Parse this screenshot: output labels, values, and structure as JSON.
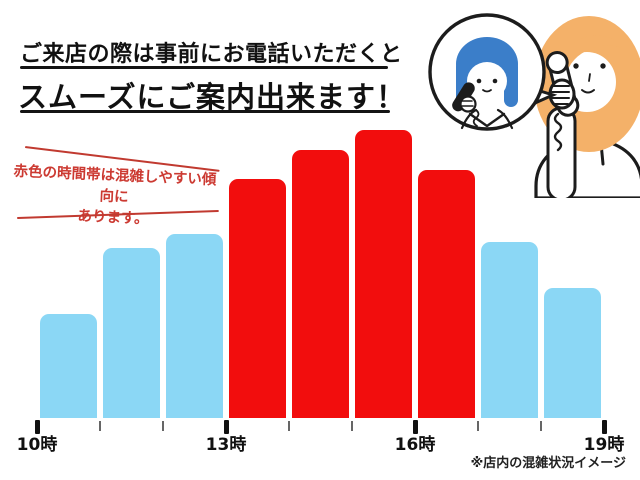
{
  "header": {
    "line1": "ご来店の際は事前にお電話いただくと",
    "line2": "スムーズにご案内出来ます！"
  },
  "annotation": {
    "line1": "赤色の時間帯は混雑しやすい傾向に",
    "line2": "あります。",
    "text_color": "#cc3a32"
  },
  "chart_data": {
    "type": "bar",
    "title": "",
    "xlabel": "",
    "ylabel": "",
    "x_hours": [
      10,
      11,
      12,
      13,
      14,
      15,
      16,
      17,
      18
    ],
    "values": [
      36,
      59,
      64,
      83,
      93,
      100,
      86,
      61,
      45
    ],
    "ylim": [
      0,
      100
    ],
    "bar_colors": [
      "blue",
      "blue",
      "blue",
      "red",
      "red",
      "red",
      "red",
      "blue",
      "blue"
    ],
    "palette": {
      "blue": "#8bd7f5",
      "red": "#f20d0d"
    },
    "x_axis_range": [
      10,
      19
    ],
    "x_major_ticks": [
      10,
      13,
      16,
      19
    ],
    "x_tick_labels": [
      "10時",
      "13時",
      "16時",
      "19時"
    ],
    "grid": "off",
    "legend_position": "none"
  },
  "footer": {
    "note": "※店内の混雑状況イメージ"
  },
  "illustration": {
    "name": "phone-call-between-customer-and-staff",
    "staff_hair_color": "#3b7ec9",
    "customer_hair_color": "#f4b169",
    "outline_color": "#1c1c1c"
  }
}
